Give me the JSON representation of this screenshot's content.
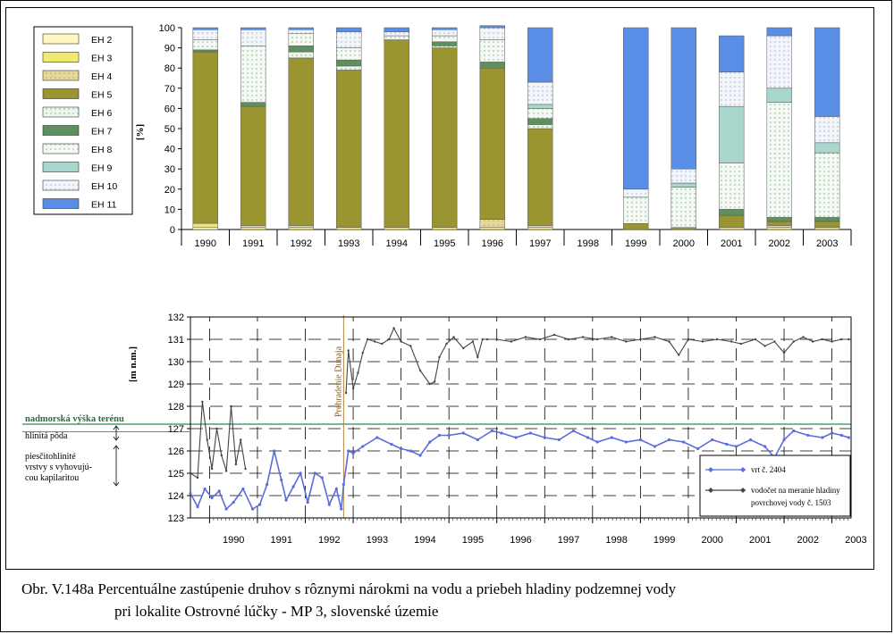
{
  "caption": {
    "line1": "Obr. V.148a Percentuálne zastúpenie druhov s rôznymi nárokmi na vodu a priebeh hladiny podzemnej vody",
    "line2": "pri lokalite Ostrovné lúčky - MP 3, slovenské územie"
  },
  "chart_data": [
    {
      "type": "bar",
      "stacked": true,
      "categories": [
        "1990",
        "1991",
        "1992",
        "1993",
        "1994",
        "1995",
        "1996",
        "1997",
        "1998",
        "1999",
        "2000",
        "2001",
        "2002",
        "2003"
      ],
      "ylabel": "[%]",
      "ylim": [
        0,
        100
      ],
      "yticks": [
        0,
        10,
        20,
        30,
        40,
        50,
        60,
        70,
        80,
        90,
        100
      ],
      "legend_position": "top-left",
      "series": [
        {
          "name": "EH 2",
          "color": "#fff6c0",
          "values": [
            1,
            0,
            0,
            0,
            0,
            0,
            0,
            0,
            0,
            0,
            0,
            0,
            0,
            0
          ]
        },
        {
          "name": "EH 3",
          "color": "#f2ea6e",
          "values": [
            2,
            1,
            1,
            1,
            1,
            1,
            1,
            1,
            0,
            0,
            0,
            0,
            1,
            0
          ]
        },
        {
          "name": "EH 4",
          "color": "#e6d79a",
          "values": [
            0,
            1,
            1,
            0,
            0,
            0,
            4,
            1,
            0,
            0,
            0,
            1,
            1,
            1
          ]
        },
        {
          "name": "EH 5",
          "color": "#9a9531",
          "values": [
            85,
            59,
            83,
            78,
            93,
            89,
            75,
            48,
            0,
            3,
            1,
            6,
            2,
            3
          ]
        },
        {
          "name": "EH 6",
          "color": "#eef6ee",
          "values": [
            0,
            0,
            3,
            2,
            0,
            1,
            0,
            2,
            0,
            0,
            0,
            0,
            0,
            0
          ]
        },
        {
          "name": "EH 7",
          "color": "#5e8f5e",
          "values": [
            1,
            2,
            3,
            3,
            0,
            2,
            3,
            3,
            0,
            0,
            0,
            3,
            2,
            2
          ]
        },
        {
          "name": "EH 8",
          "color": "#f4f9f4",
          "values": [
            5,
            28,
            6,
            6,
            2,
            3,
            11,
            5,
            0,
            13,
            20,
            23,
            57,
            32
          ]
        },
        {
          "name": "EH 9",
          "color": "#a9d7cd",
          "values": [
            0,
            0,
            0,
            0,
            0,
            0,
            0,
            2,
            0,
            0,
            2,
            28,
            7,
            5
          ]
        },
        {
          "name": "EH 10",
          "color": "#f2f6fa",
          "values": [
            5,
            8,
            2,
            8,
            2,
            3,
            6,
            11,
            0,
            4,
            7,
            17,
            26,
            13
          ]
        },
        {
          "name": "EH 11",
          "color": "#5a8ee6",
          "values": [
            1,
            1,
            1,
            2,
            2,
            1,
            1,
            27,
            0,
            80,
            70,
            18,
            4,
            44
          ]
        }
      ]
    },
    {
      "type": "line",
      "ylabel": "[m n.m.]",
      "ylim": [
        123,
        132
      ],
      "yticks": [
        123,
        124,
        125,
        126,
        127,
        128,
        129,
        130,
        131,
        132
      ],
      "x_labels": [
        "1990",
        "1991",
        "1992",
        "1993",
        "1994",
        "1995",
        "1996",
        "1997",
        "1998",
        "1999",
        "2000",
        "2001",
        "2002",
        "2003"
      ],
      "xlim": [
        1989.6,
        2003.4
      ],
      "annotations": {
        "event": "Prehradenie Dunaja",
        "event_year": 1992.8,
        "terrain_label": "nadmorská výška terénu",
        "terrain_level": 127.2,
        "soil_label": "hlinitá pôda",
        "layer_label_1": "piesčitohlinité",
        "layer_label_2": "vrstvy s vyhovujú-",
        "layer_label_3": "cou kapilaritou"
      },
      "series": [
        {
          "name": "vrt č. 2404",
          "color": "#5b6be0",
          "x": [
            1989.6,
            1989.75,
            1989.9,
            1990.05,
            1990.2,
            1990.35,
            1990.5,
            1990.7,
            1990.9,
            1991.05,
            1991.2,
            1991.35,
            1991.5,
            1991.6,
            1991.75,
            1991.9,
            1992.05,
            1992.2,
            1992.35,
            1992.5,
            1992.65,
            1992.75,
            1992.8,
            1992.9,
            1993.0,
            1993.2,
            1993.5,
            1993.8,
            1994.0,
            1994.2,
            1994.4,
            1994.6,
            1994.8,
            1995.0,
            1995.3,
            1995.6,
            1995.9,
            1996.1,
            1996.4,
            1996.7,
            1997.0,
            1997.3,
            1997.6,
            1997.9,
            1998.1,
            1998.4,
            1998.7,
            1999.0,
            1999.3,
            1999.6,
            1999.9,
            2000.2,
            2000.5,
            2000.8,
            2001.0,
            2001.3,
            2001.6,
            2001.8,
            2002.0,
            2002.2,
            2002.5,
            2002.8,
            2003.0,
            2003.2,
            2003.35
          ],
          "values": [
            124.1,
            123.5,
            124.3,
            123.9,
            124.2,
            123.4,
            123.7,
            124.3,
            123.4,
            123.6,
            124.5,
            126.0,
            124.7,
            123.8,
            124.4,
            125.0,
            123.7,
            125.0,
            124.8,
            123.6,
            124.3,
            123.4,
            124.5,
            126.0,
            125.9,
            126.2,
            126.6,
            126.3,
            126.1,
            126.0,
            125.8,
            126.4,
            126.7,
            126.7,
            126.8,
            126.5,
            126.9,
            126.8,
            126.6,
            126.8,
            126.6,
            126.5,
            126.9,
            126.6,
            126.4,
            126.6,
            126.4,
            126.5,
            126.2,
            126.5,
            126.4,
            126.1,
            126.5,
            126.3,
            126.2,
            126.5,
            126.2,
            125.7,
            126.5,
            126.9,
            126.7,
            126.6,
            126.8,
            126.7,
            126.6
          ]
        },
        {
          "name": "vodočet na meranie hladiny",
          "name_line2": "povrchovej vody č. 1503",
          "color": "#444444",
          "x": [
            1989.6,
            1989.75,
            1989.85,
            1989.95,
            1990.05,
            1990.15,
            1990.25,
            1990.35,
            1990.45,
            1990.55,
            1990.65,
            1990.75,
            1990.8,
            1990.83,
            1990.9,
            1991.0,
            1991.2,
            1991.4,
            1991.6,
            1991.8,
            1992.0,
            1992.2,
            1992.4,
            1992.6,
            1992.8,
            1992.85,
            1992.9,
            1993.0,
            1993.1,
            1993.2,
            1993.3,
            1993.45,
            1993.6,
            1993.75,
            1993.85,
            1994.0,
            1994.2,
            1994.4,
            1994.6,
            1994.7,
            1994.8,
            1994.95,
            1995.1,
            1995.3,
            1995.5,
            1995.6,
            1995.7,
            1995.8,
            1996.0,
            1996.3,
            1996.6,
            1996.9,
            1997.2,
            1997.5,
            1997.8,
            1998.1,
            1998.4,
            1998.7,
            1999.0,
            1999.3,
            1999.6,
            1999.8,
            2000.0,
            2000.3,
            2000.6,
            2000.9,
            2001.1,
            2001.4,
            2001.6,
            2001.8,
            2002.0,
            2002.2,
            2002.4,
            2002.6,
            2002.8,
            2003.0,
            2003.2,
            2003.35
          ],
          "values": [
            125.0,
            124.8,
            128.2,
            126.5,
            125.2,
            127.0,
            125.8,
            125.1,
            128.0,
            125.4,
            126.5,
            125.2,
            null,
            null,
            null,
            null,
            null,
            null,
            null,
            null,
            null,
            null,
            null,
            null,
            null,
            128.6,
            130.5,
            128.8,
            129.5,
            130.4,
            131.0,
            130.9,
            130.8,
            131.0,
            131.5,
            130.9,
            130.7,
            129.6,
            129.0,
            129.1,
            130.2,
            130.8,
            131.1,
            130.6,
            130.9,
            130.2,
            131.0,
            131.0,
            131.0,
            130.9,
            131.1,
            131.0,
            131.2,
            131.0,
            131.1,
            131.0,
            131.1,
            130.9,
            131.0,
            131.1,
            130.9,
            130.3,
            131.0,
            130.9,
            131.0,
            130.9,
            130.8,
            131.0,
            130.7,
            130.9,
            130.4,
            130.9,
            131.1,
            130.9,
            131.0,
            130.9,
            131.0,
            131.0
          ]
        }
      ]
    }
  ]
}
